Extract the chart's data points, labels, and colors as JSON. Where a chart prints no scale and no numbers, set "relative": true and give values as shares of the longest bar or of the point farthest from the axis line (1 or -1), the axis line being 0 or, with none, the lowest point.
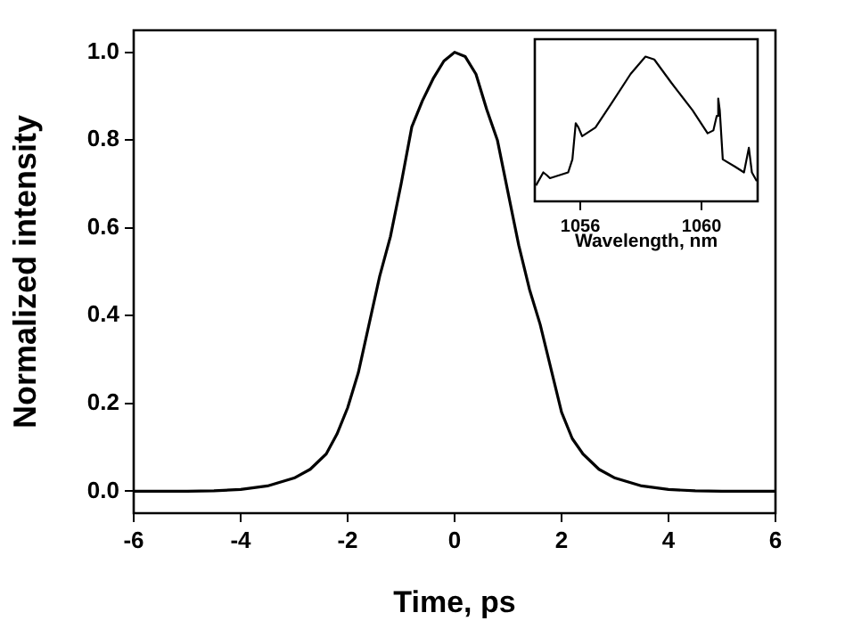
{
  "chart_data": [
    {
      "type": "line",
      "xlabel": "Time, ps",
      "ylabel": "Normalized intensity",
      "color": "#000000",
      "marker": "none",
      "x": [
        -6,
        -5,
        -4.5,
        -4,
        -3.5,
        -3,
        -2.7,
        -2.4,
        -2.2,
        -2,
        -1.8,
        -1.6,
        -1.4,
        -1.2,
        -1,
        -0.8,
        -0.6,
        -0.4,
        -0.2,
        0,
        0.2,
        0.4,
        0.6,
        0.8,
        1,
        1.2,
        1.4,
        1.6,
        1.8,
        2,
        2.2,
        2.4,
        2.7,
        3,
        3.5,
        4,
        4.5,
        5,
        6
      ],
      "values": [
        0,
        0,
        0.001,
        0.004,
        0.012,
        0.03,
        0.05,
        0.085,
        0.13,
        0.19,
        0.27,
        0.38,
        0.49,
        0.58,
        0.7,
        0.83,
        0.89,
        0.94,
        0.98,
        1.0,
        0.99,
        0.95,
        0.87,
        0.8,
        0.68,
        0.56,
        0.46,
        0.38,
        0.28,
        0.18,
        0.12,
        0.085,
        0.05,
        0.03,
        0.012,
        0.004,
        0.001,
        0,
        0
      ],
      "xlim": [
        -6,
        6
      ],
      "xticks": [
        -6,
        -4,
        -2,
        0,
        2,
        4,
        6
      ],
      "ylim": [
        -0.05,
        1.05
      ],
      "yticks": [
        {
          "value": 0,
          "label": "0.0"
        },
        {
          "value": 0.2,
          "label": "0.2"
        },
        {
          "value": 0.4,
          "label": "0.4"
        },
        {
          "value": 0.6,
          "label": "0.6"
        },
        {
          "value": 0.8,
          "label": "0.8"
        },
        {
          "value": 1,
          "label": "1.0"
        }
      ]
    },
    {
      "type": "line",
      "xlabel": "Wavelength, nm",
      "color": "#000000",
      "marker": "none",
      "relative": true,
      "tick_labels": "x",
      "x": [
        1054.54,
        1054.78,
        1054.9,
        1055.0,
        1055.6,
        1055.74,
        1055.85,
        1055.94,
        1056.06,
        1056.5,
        1057.07,
        1057.66,
        1058.15,
        1058.44,
        1059.0,
        1059.7,
        1060.2,
        1060.39,
        1060.5,
        1060.55,
        1060.6,
        1060.7,
        1061.1,
        1061.4,
        1061.56,
        1061.66,
        1061.82
      ],
      "values": [
        0.11,
        0.2,
        0.18,
        0.16,
        0.2,
        0.29,
        0.54,
        0.51,
        0.45,
        0.51,
        0.69,
        0.88,
        1.0,
        0.98,
        0.82,
        0.63,
        0.47,
        0.49,
        0.59,
        0.71,
        0.63,
        0.29,
        0.24,
        0.2,
        0.37,
        0.2,
        0.14
      ],
      "xlim": [
        1054.5,
        1061.85
      ],
      "xticks": [
        1056,
        1060
      ]
    }
  ]
}
